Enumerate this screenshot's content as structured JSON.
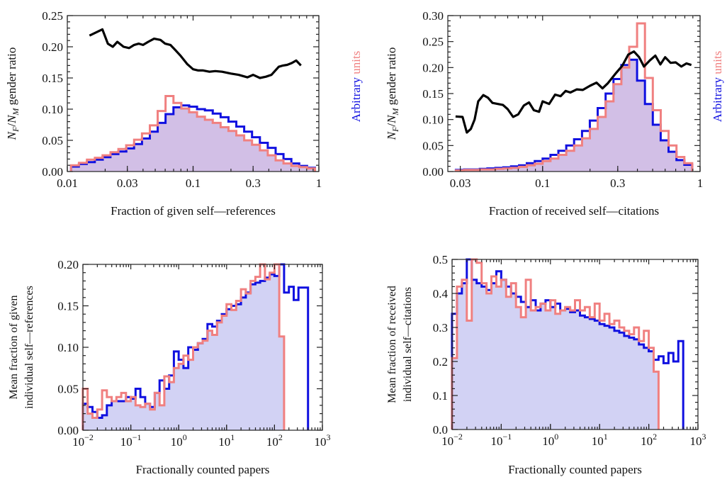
{
  "chart_data": [
    {
      "id": "p1",
      "type": "line",
      "x_scale": "log",
      "xlabel": "Fraction of given self—references",
      "ylabel_parts": [
        "N",
        "F",
        "/",
        "N",
        "M",
        " gender ratio"
      ],
      "y2label_parts": [
        "Arbitrary",
        " units"
      ],
      "xlim": [
        0.01,
        1
      ],
      "ylim": [
        0,
        0.25
      ],
      "xticks": [
        0.01,
        0.03,
        0.1,
        0.3,
        1
      ],
      "xtick_labels": [
        "0.01",
        "0.03",
        "0.1",
        "0.3",
        "1"
      ],
      "yticks": [
        0,
        0.05,
        0.1,
        0.15,
        0.2,
        0.25
      ],
      "ytick_labels": [
        "0.00",
        "0.05",
        "0.10",
        "0.15",
        "0.20",
        "0.25"
      ],
      "colors": {
        "ratio": "#000000",
        "hist_a": "#1010e0",
        "hist_b": "#f08080",
        "fill": "#d2bfe6"
      },
      "series": [
        {
          "kind": "line",
          "x": [
            0.015,
            0.019,
            0.021,
            0.023,
            0.025,
            0.028,
            0.031,
            0.034,
            0.037,
            0.04,
            0.044,
            0.049,
            0.055,
            0.06,
            0.066,
            0.072,
            0.08,
            0.09,
            0.1,
            0.11,
            0.12,
            0.135,
            0.15,
            0.17,
            0.2,
            0.23,
            0.27,
            0.3,
            0.34,
            0.38,
            0.42,
            0.48,
            0.52,
            0.56,
            0.61,
            0.66,
            0.72
          ],
          "y": [
            0.218,
            0.228,
            0.205,
            0.2,
            0.208,
            0.2,
            0.198,
            0.203,
            0.205,
            0.203,
            0.208,
            0.213,
            0.211,
            0.205,
            0.203,
            0.195,
            0.185,
            0.172,
            0.164,
            0.162,
            0.162,
            0.16,
            0.161,
            0.16,
            0.157,
            0.155,
            0.151,
            0.155,
            0.15,
            0.152,
            0.155,
            0.168,
            0.17,
            0.171,
            0.174,
            0.178,
            0.17
          ]
        },
        {
          "kind": "hist",
          "x": [
            0.0115,
            0.0133,
            0.0154,
            0.0178,
            0.0205,
            0.0237,
            0.0274,
            0.0316,
            0.0365,
            0.0422,
            0.0487,
            0.0562,
            0.065,
            0.075,
            0.0866,
            0.1,
            0.1155,
            0.1334,
            0.154,
            0.178,
            0.2054,
            0.2371,
            0.2738,
            0.3162,
            0.3652,
            0.4217,
            0.487,
            0.5623,
            0.6494,
            0.75,
            0.866
          ],
          "y": [
            0.008,
            0.012,
            0.015,
            0.019,
            0.023,
            0.028,
            0.032,
            0.037,
            0.044,
            0.053,
            0.064,
            0.078,
            0.092,
            0.103,
            0.106,
            0.104,
            0.1,
            0.098,
            0.093,
            0.087,
            0.08,
            0.072,
            0.064,
            0.055,
            0.046,
            0.038,
            0.028,
            0.02,
            0.013,
            0.009,
            0.006
          ]
        },
        {
          "kind": "hist",
          "x": [
            0.0115,
            0.0133,
            0.0154,
            0.0178,
            0.0205,
            0.0237,
            0.0274,
            0.0316,
            0.0365,
            0.0422,
            0.0487,
            0.0562,
            0.065,
            0.075,
            0.0866,
            0.1,
            0.1155,
            0.1334,
            0.154,
            0.178,
            0.2054,
            0.2371,
            0.2738,
            0.3162,
            0.3652,
            0.4217,
            0.487,
            0.5623,
            0.6494,
            0.75,
            0.866
          ],
          "y": [
            0.01,
            0.014,
            0.019,
            0.022,
            0.026,
            0.031,
            0.036,
            0.042,
            0.051,
            0.061,
            0.074,
            0.097,
            0.121,
            0.11,
            0.101,
            0.095,
            0.088,
            0.083,
            0.078,
            0.071,
            0.065,
            0.058,
            0.05,
            0.043,
            0.034,
            0.026,
            0.018,
            0.013,
            0.009,
            0.007,
            0.005
          ]
        }
      ]
    },
    {
      "id": "p2",
      "type": "line",
      "x_scale": "log",
      "xlabel": "Fraction of received self—citations",
      "ylabel_parts": [
        "N",
        "F",
        "/",
        "N",
        "M",
        " gender ratio"
      ],
      "y2label_parts": [
        "Arbitrary",
        " units"
      ],
      "xlim": [
        0.025,
        1
      ],
      "ylim": [
        0,
        0.3
      ],
      "xticks": [
        0.03,
        0.1,
        0.3,
        1
      ],
      "xtick_labels": [
        "0.03",
        "0.1",
        "0.3",
        "1"
      ],
      "yticks": [
        0,
        0.05,
        0.1,
        0.15,
        0.2,
        0.25,
        0.3
      ],
      "ytick_labels": [
        "0.00",
        "0.05",
        "0.10",
        "0.15",
        "0.20",
        "0.25",
        "0.30"
      ],
      "colors": {
        "ratio": "#000000",
        "hist_a": "#1010e0",
        "hist_b": "#f08080",
        "fill": "#d2bfe6"
      },
      "series": [
        {
          "kind": "line",
          "x": [
            0.028,
            0.031,
            0.033,
            0.035,
            0.037,
            0.039,
            0.042,
            0.045,
            0.048,
            0.052,
            0.056,
            0.06,
            0.065,
            0.07,
            0.076,
            0.082,
            0.088,
            0.095,
            0.1,
            0.11,
            0.12,
            0.13,
            0.14,
            0.15,
            0.165,
            0.18,
            0.2,
            0.22,
            0.24,
            0.26,
            0.29,
            0.32,
            0.35,
            0.38,
            0.41,
            0.44,
            0.48,
            0.52,
            0.56,
            0.6,
            0.65,
            0.7,
            0.76,
            0.82,
            0.88
          ],
          "y": [
            0.106,
            0.105,
            0.075,
            0.082,
            0.1,
            0.135,
            0.147,
            0.142,
            0.132,
            0.13,
            0.128,
            0.12,
            0.105,
            0.11,
            0.127,
            0.133,
            0.118,
            0.115,
            0.135,
            0.13,
            0.148,
            0.145,
            0.155,
            0.152,
            0.158,
            0.157,
            0.165,
            0.171,
            0.16,
            0.17,
            0.188,
            0.203,
            0.225,
            0.231,
            0.22,
            0.202,
            0.214,
            0.223,
            0.206,
            0.22,
            0.209,
            0.21,
            0.202,
            0.208,
            0.205
          ]
        },
        {
          "kind": "hist",
          "x": [
            0.0298,
            0.0335,
            0.0376,
            0.0422,
            0.0473,
            0.0531,
            0.0596,
            0.0668,
            0.075,
            0.0841,
            0.0944,
            0.1059,
            0.1189,
            0.1334,
            0.1496,
            0.1679,
            0.1884,
            0.2113,
            0.2371,
            0.2661,
            0.2985,
            0.335,
            0.3758,
            0.4217,
            0.4732,
            0.5309,
            0.5957,
            0.6683,
            0.75,
            0.8414
          ],
          "y": [
            0.003,
            0.004,
            0.004,
            0.005,
            0.006,
            0.007,
            0.008,
            0.01,
            0.012,
            0.016,
            0.02,
            0.025,
            0.032,
            0.04,
            0.05,
            0.062,
            0.078,
            0.098,
            0.122,
            0.15,
            0.178,
            0.205,
            0.215,
            0.175,
            0.13,
            0.09,
            0.06,
            0.038,
            0.022,
            0.013
          ]
        },
        {
          "kind": "hist",
          "x": [
            0.0298,
            0.0335,
            0.0376,
            0.0422,
            0.0473,
            0.0531,
            0.0596,
            0.0668,
            0.075,
            0.0841,
            0.0944,
            0.1059,
            0.1189,
            0.1334,
            0.1496,
            0.1679,
            0.1884,
            0.2113,
            0.2371,
            0.2661,
            0.2985,
            0.335,
            0.3758,
            0.4217,
            0.4732,
            0.5309,
            0.5957,
            0.6683,
            0.75,
            0.8414
          ],
          "y": [
            0.002,
            0.003,
            0.003,
            0.004,
            0.004,
            0.005,
            0.006,
            0.007,
            0.009,
            0.012,
            0.015,
            0.02,
            0.025,
            0.032,
            0.04,
            0.05,
            0.064,
            0.082,
            0.105,
            0.135,
            0.168,
            0.2,
            0.24,
            0.285,
            0.18,
            0.118,
            0.078,
            0.05,
            0.028,
            0.016
          ]
        }
      ]
    },
    {
      "id": "p3",
      "type": "line",
      "x_scale": "log",
      "xlabel": "Fractionally counted papers",
      "ylabel_lines": [
        "Mean fraction of given",
        "individual self—references"
      ],
      "xlim": [
        0.01,
        1000
      ],
      "ylim": [
        0,
        0.2
      ],
      "xticks": [
        0.01,
        0.1,
        1,
        10,
        100,
        1000
      ],
      "xtick_labels": [
        [
          "10",
          "−2"
        ],
        [
          "10",
          "−1"
        ],
        [
          "10",
          "0"
        ],
        [
          "10",
          "1"
        ],
        [
          "10",
          "2"
        ],
        [
          "10",
          "3"
        ]
      ],
      "yticks": [
        0,
        0.05,
        0.1,
        0.15,
        0.2
      ],
      "ytick_labels": [
        "0.00",
        "0.05",
        "0.10",
        "0.15",
        "0.20"
      ],
      "colors": {
        "hist_a": "#1010e0",
        "hist_b": "#f08080",
        "fill": "#d2d2f4"
      },
      "series": [
        {
          "kind": "hist",
          "x": [
            0.0112,
            0.0141,
            0.0178,
            0.0224,
            0.0282,
            0.0355,
            0.0447,
            0.0562,
            0.0708,
            0.0891,
            0.112,
            0.141,
            0.178,
            0.224,
            0.282,
            0.355,
            0.447,
            0.562,
            0.708,
            0.891,
            1.12,
            1.41,
            1.78,
            2.24,
            2.82,
            3.55,
            4.47,
            5.62,
            7.08,
            8.91,
            11.2,
            14.1,
            17.8,
            22.4,
            28.2,
            35.5,
            44.7,
            56.2,
            70.8,
            89.1,
            112,
            141,
            178,
            224,
            282,
            355,
            447
          ],
          "y": [
            0.032,
            0.028,
            0.022,
            0.015,
            0.018,
            0.03,
            0.035,
            0.035,
            0.035,
            0.04,
            0.038,
            0.05,
            0.04,
            0.032,
            0.028,
            0.045,
            0.06,
            0.05,
            0.066,
            0.095,
            0.085,
            0.075,
            0.1,
            0.097,
            0.105,
            0.11,
            0.128,
            0.125,
            0.132,
            0.14,
            0.146,
            0.15,
            0.152,
            0.16,
            0.166,
            0.176,
            0.178,
            0.18,
            0.184,
            0.188,
            0.186,
            0.2,
            0.166,
            0.173,
            0.157,
            0.172,
            0.172
          ]
        },
        {
          "kind": "hist",
          "x": [
            0.0112,
            0.0141,
            0.0178,
            0.0224,
            0.0282,
            0.0355,
            0.0447,
            0.0562,
            0.0708,
            0.0891,
            0.112,
            0.141,
            0.178,
            0.224,
            0.282,
            0.355,
            0.447,
            0.562,
            0.708,
            0.891,
            1.12,
            1.41,
            1.78,
            2.24,
            2.82,
            3.55,
            4.47,
            5.62,
            7.08,
            8.91,
            11.2,
            14.1,
            17.8,
            22.4,
            28.2,
            35.5,
            44.7,
            56.2,
            70.8,
            89.1,
            112,
            141
          ],
          "y": [
            0.05,
            0.02,
            0.015,
            0.025,
            0.048,
            0.04,
            0.035,
            0.04,
            0.045,
            0.035,
            0.04,
            0.03,
            0.028,
            0.032,
            0.025,
            0.045,
            0.03,
            0.065,
            0.058,
            0.075,
            0.08,
            0.09,
            0.085,
            0.1,
            0.105,
            0.108,
            0.12,
            0.115,
            0.13,
            0.138,
            0.152,
            0.145,
            0.156,
            0.17,
            0.165,
            0.18,
            0.185,
            0.2,
            0.182,
            0.19,
            0.2,
            0.113
          ]
        }
      ]
    },
    {
      "id": "p4",
      "type": "line",
      "x_scale": "log",
      "xlabel": "Fractionally counted papers",
      "ylabel_lines": [
        "Mean fraction of received",
        "individual self—citations"
      ],
      "xlim": [
        0.01,
        1000
      ],
      "ylim": [
        0,
        0.5
      ],
      "xticks": [
        0.01,
        0.1,
        1,
        10,
        100,
        1000
      ],
      "xtick_labels": [
        [
          "10",
          "−2"
        ],
        [
          "10",
          "−1"
        ],
        [
          "10",
          "0"
        ],
        [
          "10",
          "1"
        ],
        [
          "10",
          "2"
        ],
        [
          "10",
          "3"
        ]
      ],
      "yticks": [
        0,
        0.1,
        0.2,
        0.3,
        0.4,
        0.5
      ],
      "ytick_labels": [
        "0.0",
        "0.1",
        "0.2",
        "0.3",
        "0.4",
        "0.5"
      ],
      "colors": {
        "hist_a": "#1010e0",
        "hist_b": "#f08080",
        "fill": "#d2d2f4"
      },
      "series": [
        {
          "kind": "hist",
          "x": [
            0.0112,
            0.0141,
            0.0178,
            0.0224,
            0.0282,
            0.0355,
            0.0447,
            0.0562,
            0.0708,
            0.0891,
            0.112,
            0.141,
            0.178,
            0.224,
            0.282,
            0.355,
            0.447,
            0.562,
            0.708,
            0.891,
            1.12,
            1.41,
            1.78,
            2.24,
            2.82,
            3.55,
            4.47,
            5.62,
            7.08,
            8.91,
            11.2,
            14.1,
            17.8,
            22.4,
            28.2,
            35.5,
            44.7,
            56.2,
            70.8,
            89.1,
            112,
            141,
            178,
            224,
            282,
            355,
            447
          ],
          "y": [
            0.34,
            0.4,
            0.43,
            0.5,
            0.44,
            0.43,
            0.42,
            0.41,
            0.43,
            0.465,
            0.44,
            0.42,
            0.4,
            0.39,
            0.375,
            0.36,
            0.38,
            0.35,
            0.37,
            0.38,
            0.36,
            0.37,
            0.35,
            0.355,
            0.345,
            0.35,
            0.335,
            0.33,
            0.325,
            0.32,
            0.31,
            0.305,
            0.3,
            0.29,
            0.285,
            0.275,
            0.27,
            0.265,
            0.25,
            0.24,
            0.23,
            0.205,
            0.215,
            0.195,
            0.225,
            0.2,
            0.26
          ]
        },
        {
          "kind": "hist",
          "x": [
            0.0112,
            0.0141,
            0.0178,
            0.0224,
            0.0282,
            0.0355,
            0.0447,
            0.0562,
            0.0708,
            0.0891,
            0.112,
            0.141,
            0.178,
            0.224,
            0.282,
            0.355,
            0.447,
            0.562,
            0.708,
            0.891,
            1.12,
            1.41,
            1.78,
            2.24,
            2.82,
            3.55,
            4.47,
            5.62,
            7.08,
            8.91,
            11.2,
            14.1,
            17.8,
            22.4,
            28.2,
            35.5,
            44.7,
            56.2,
            70.8,
            89.1,
            112,
            141
          ],
          "y": [
            0.21,
            0.42,
            0.44,
            0.32,
            0.5,
            0.49,
            0.43,
            0.4,
            0.45,
            0.42,
            0.44,
            0.39,
            0.43,
            0.36,
            0.33,
            0.44,
            0.35,
            0.36,
            0.37,
            0.35,
            0.38,
            0.34,
            0.35,
            0.36,
            0.35,
            0.38,
            0.35,
            0.36,
            0.33,
            0.37,
            0.32,
            0.34,
            0.31,
            0.32,
            0.3,
            0.29,
            0.28,
            0.3,
            0.26,
            0.29,
            0.24,
            0.17
          ]
        }
      ]
    }
  ]
}
